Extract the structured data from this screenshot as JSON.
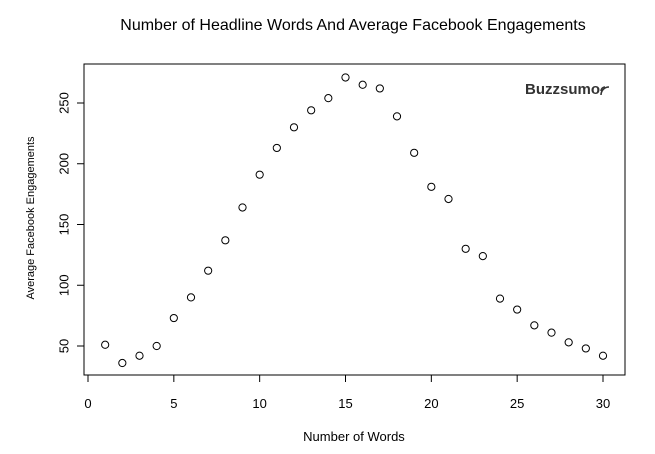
{
  "chart_data": {
    "type": "scatter",
    "title": "Number of Headline Words And Average Facebook Engagements",
    "xlabel": "Number of Words",
    "ylabel": "Average Facebook Engagements",
    "xlim": [
      0,
      31
    ],
    "ylim": [
      30,
      280
    ],
    "xticks": [
      0,
      5,
      10,
      15,
      20,
      25,
      30
    ],
    "yticks": [
      50,
      100,
      150,
      200,
      250
    ],
    "grid": false,
    "marker": "open-circle",
    "x": [
      1,
      2,
      3,
      4,
      5,
      6,
      7,
      8,
      9,
      10,
      11,
      12,
      13,
      14,
      15,
      16,
      17,
      18,
      19,
      20,
      21,
      22,
      23,
      24,
      25,
      26,
      27,
      28,
      29,
      30
    ],
    "y": [
      51,
      36,
      42,
      50,
      73,
      90,
      112,
      137,
      164,
      191,
      213,
      230,
      244,
      254,
      271,
      265,
      262,
      239,
      209,
      181,
      171,
      130,
      124,
      89,
      80,
      67,
      61,
      53,
      48,
      42
    ]
  },
  "logo": {
    "text": "Buzzsumo",
    "icon": "signal-waves-icon"
  }
}
